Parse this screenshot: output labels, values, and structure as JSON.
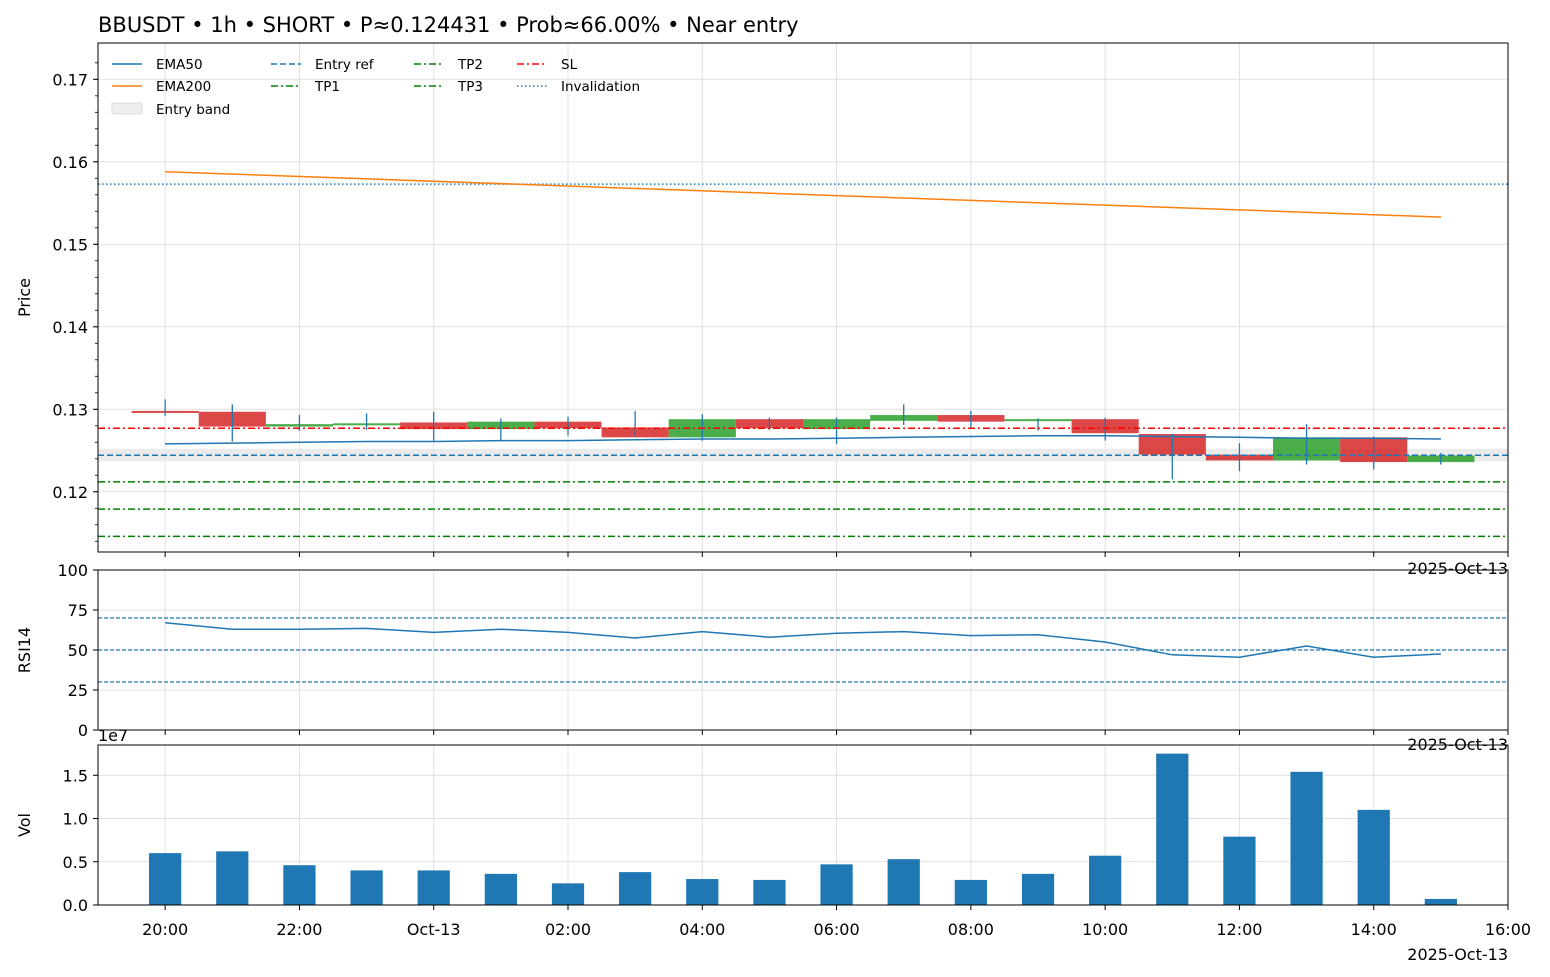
{
  "title": "BBUSDT • 1h • SHORT • P≈0.124431 • Prob≈66.00% • Near entry",
  "colors": {
    "ema50": "#1f77b4",
    "ema200": "#ff7f0e",
    "up": "#2ca02c",
    "down": "#d62728",
    "wick": "#1f77b4",
    "entry": "#1f77b4",
    "tp": "#008000",
    "sl": "#ff0000",
    "invalidation": "#1f77b4",
    "rsi": "#1f77b4",
    "volume": "#1f77b4",
    "band": "#e6e6e6",
    "grid": "#e0e0e0"
  },
  "date_label": "2025-Oct-13",
  "chart_data": [
    {
      "type": "candlestick",
      "panel": "price",
      "ylabel": "Price",
      "ylim": [
        0.1127,
        0.1744
      ],
      "yticks": [
        0.12,
        0.13,
        0.14,
        0.15,
        0.16,
        0.17
      ],
      "ytick_labels": [
        "0.12",
        "0.13",
        "0.14",
        "0.15",
        "0.16",
        "0.17"
      ],
      "xticks": [
        -1,
        1,
        3,
        5,
        7,
        9,
        11,
        13,
        15,
        17,
        19
      ],
      "xtick_labels": [
        "20:00",
        "22:00",
        "Oct-13",
        "02:00",
        "04:00",
        "06:00",
        "08:00",
        "10:00",
        "12:00",
        "14:00",
        "16:00"
      ],
      "xlim": [
        -2,
        19
      ],
      "grid": true,
      "legend_position": "top-left",
      "legend": [
        {
          "label": "EMA50",
          "kind": "line",
          "color": "#1f77b4",
          "dash": ""
        },
        {
          "label": "EMA200",
          "kind": "line",
          "color": "#ff7f0e",
          "dash": ""
        },
        {
          "label": "Entry band",
          "kind": "patch",
          "color": "#eeeeee",
          "dash": ""
        },
        {
          "label": "Entry ref",
          "kind": "line",
          "color": "#1f77b4",
          "dash": "6,3"
        },
        {
          "label": "TP1",
          "kind": "line",
          "color": "#008000",
          "dash": "7,3,2,3"
        },
        {
          "label": "TP2",
          "kind": "line",
          "color": "#008000",
          "dash": "7,3,2,3"
        },
        {
          "label": "TP3",
          "kind": "line",
          "color": "#008000",
          "dash": "7,3,2,3"
        },
        {
          "label": "SL",
          "kind": "line",
          "color": "#ff0000",
          "dash": "7,3,2,3"
        },
        {
          "label": "Invalidation",
          "kind": "line",
          "color": "#1f77b4",
          "dash": "1.5,2.5"
        }
      ],
      "candles": [
        {
          "t": -1,
          "o": 0.1298,
          "h": 0.1312,
          "l": 0.1292,
          "c": 0.1296
        },
        {
          "t": 0,
          "o": 0.1297,
          "h": 0.1306,
          "l": 0.1261,
          "c": 0.1279
        },
        {
          "t": 1,
          "o": 0.1279,
          "h": 0.1293,
          "l": 0.1274,
          "c": 0.1282
        },
        {
          "t": 2,
          "o": 0.1282,
          "h": 0.1295,
          "l": 0.1275,
          "c": 0.1283
        },
        {
          "t": 3,
          "o": 0.1284,
          "h": 0.1297,
          "l": 0.1262,
          "c": 0.1276
        },
        {
          "t": 4,
          "o": 0.1276,
          "h": 0.1289,
          "l": 0.1262,
          "c": 0.1285
        },
        {
          "t": 5,
          "o": 0.1285,
          "h": 0.1291,
          "l": 0.1268,
          "c": 0.1277
        },
        {
          "t": 6,
          "o": 0.1278,
          "h": 0.1298,
          "l": 0.1266,
          "c": 0.1266
        },
        {
          "t": 7,
          "o": 0.1266,
          "h": 0.1294,
          "l": 0.1262,
          "c": 0.1288
        },
        {
          "t": 8,
          "o": 0.1288,
          "h": 0.129,
          "l": 0.1275,
          "c": 0.1277
        },
        {
          "t": 9,
          "o": 0.1276,
          "h": 0.129,
          "l": 0.1258,
          "c": 0.1288
        },
        {
          "t": 10,
          "o": 0.1286,
          "h": 0.1306,
          "l": 0.1281,
          "c": 0.1293
        },
        {
          "t": 11,
          "o": 0.1293,
          "h": 0.1298,
          "l": 0.1278,
          "c": 0.1285
        },
        {
          "t": 12,
          "o": 0.1286,
          "h": 0.1289,
          "l": 0.1274,
          "c": 0.1288
        },
        {
          "t": 13,
          "o": 0.1288,
          "h": 0.129,
          "l": 0.1262,
          "c": 0.1271
        },
        {
          "t": 14,
          "o": 0.127,
          "h": 0.127,
          "l": 0.1215,
          "c": 0.1245
        },
        {
          "t": 15,
          "o": 0.1245,
          "h": 0.1259,
          "l": 0.1225,
          "c": 0.1238
        },
        {
          "t": 16,
          "o": 0.1238,
          "h": 0.1282,
          "l": 0.1233,
          "c": 0.1266
        },
        {
          "t": 17,
          "o": 0.1266,
          "h": 0.1267,
          "l": 0.1227,
          "c": 0.1236
        },
        {
          "t": 18,
          "o": 0.1236,
          "h": 0.1247,
          "l": 0.1233,
          "c": 0.1244
        }
      ],
      "ema50": [
        [
          -1,
          0.1258
        ],
        [
          0,
          0.1259
        ],
        [
          1,
          0.126
        ],
        [
          2,
          0.1261
        ],
        [
          3,
          0.1261
        ],
        [
          4,
          0.1262
        ],
        [
          5,
          0.1262
        ],
        [
          6,
          0.1263
        ],
        [
          7,
          0.1264
        ],
        [
          8,
          0.1264
        ],
        [
          9,
          0.1265
        ],
        [
          10,
          0.1266
        ],
        [
          11,
          0.1267
        ],
        [
          12,
          0.1268
        ],
        [
          13,
          0.1268
        ],
        [
          14,
          0.1267
        ],
        [
          15,
          0.1266
        ],
        [
          16,
          0.1265
        ],
        [
          17,
          0.1265
        ],
        [
          18,
          0.1264
        ]
      ],
      "ema200": [
        [
          -1,
          0.1588
        ],
        [
          18,
          0.1533
        ]
      ],
      "levels": {
        "entry_band": [
          0.1237,
          0.1252
        ],
        "entry_ref": 0.124431,
        "sl": 0.1277,
        "tp1": 0.1212,
        "tp2": 0.1179,
        "tp3": 0.1146,
        "invalidation": 0.1573
      }
    },
    {
      "type": "line",
      "panel": "rsi",
      "ylabel": "RSI14",
      "ylim": [
        0,
        100
      ],
      "yticks": [
        0,
        25,
        50,
        75,
        100
      ],
      "reference_lines": [
        30,
        50,
        70
      ],
      "x": [
        -1,
        0,
        1,
        2,
        3,
        4,
        5,
        6,
        7,
        8,
        9,
        10,
        11,
        12,
        13,
        14,
        15,
        16,
        17,
        18
      ],
      "values": [
        67,
        63,
        63,
        63.5,
        61,
        63,
        61,
        57.5,
        61.5,
        58,
        60.5,
        61.5,
        59,
        59.5,
        55,
        47,
        45.5,
        52.5,
        45.5,
        47.5
      ]
    },
    {
      "type": "bar",
      "panel": "volume",
      "ylabel": "Vol",
      "scale_label": "1e7",
      "ylim": [
        0,
        1.85
      ],
      "yticks": [
        0.0,
        0.5,
        1.0,
        1.5
      ],
      "ytick_labels": [
        "0.0",
        "0.5",
        "1.0",
        "1.5"
      ],
      "x": [
        -1,
        0,
        1,
        2,
        3,
        4,
        5,
        6,
        7,
        8,
        9,
        10,
        11,
        12,
        13,
        14,
        15,
        16,
        17,
        18
      ],
      "values": [
        0.6,
        0.62,
        0.46,
        0.4,
        0.4,
        0.36,
        0.25,
        0.38,
        0.3,
        0.29,
        0.47,
        0.53,
        0.29,
        0.36,
        0.57,
        1.75,
        0.79,
        1.54,
        1.1,
        0.07
      ]
    }
  ]
}
